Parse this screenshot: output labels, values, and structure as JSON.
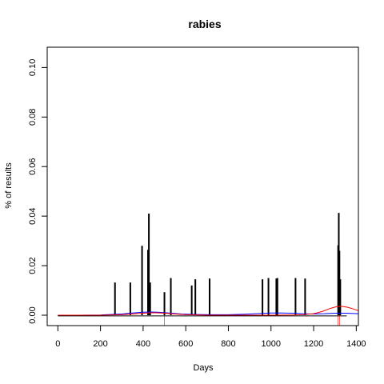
{
  "chart_data": {
    "type": "line",
    "title": "rabies",
    "xlabel": "Days",
    "ylabel": "% of results",
    "xlim": [
      -50,
      1410
    ],
    "ylim": [
      -0.0042,
      0.1082
    ],
    "xticks": [
      0,
      200,
      400,
      600,
      800,
      1000,
      1200,
      1400
    ],
    "yticks": [
      0.0,
      0.02,
      0.04,
      0.06,
      0.08,
      0.1
    ],
    "xtick_labels": [
      "0",
      "200",
      "400",
      "600",
      "800",
      "1000",
      "1200",
      "1400"
    ],
    "ytick_labels": [
      "0.00",
      "0.02",
      "0.04",
      "0.06",
      "0.08",
      "0.10"
    ],
    "grid": false,
    "spikes": {
      "color": "#000000",
      "points": [
        {
          "x": 268,
          "y": 0.0132
        },
        {
          "x": 340,
          "y": 0.0132
        },
        {
          "x": 395,
          "y": 0.028
        },
        {
          "x": 423,
          "y": 0.0264
        },
        {
          "x": 427,
          "y": 0.041
        },
        {
          "x": 433,
          "y": 0.0132
        },
        {
          "x": 500,
          "y": 0.0093
        },
        {
          "x": 530,
          "y": 0.015
        },
        {
          "x": 628,
          "y": 0.012
        },
        {
          "x": 645,
          "y": 0.0145
        },
        {
          "x": 712,
          "y": 0.0148
        },
        {
          "x": 960,
          "y": 0.0145
        },
        {
          "x": 988,
          "y": 0.015
        },
        {
          "x": 1025,
          "y": 0.0148
        },
        {
          "x": 1030,
          "y": 0.015
        },
        {
          "x": 1115,
          "y": 0.015
        },
        {
          "x": 1160,
          "y": 0.0148
        },
        {
          "x": 1315,
          "y": 0.0282
        },
        {
          "x": 1318,
          "y": 0.0413
        },
        {
          "x": 1321,
          "y": 0.026
        },
        {
          "x": 1325,
          "y": 0.0145
        }
      ]
    },
    "series": [
      {
        "color": "#0000ff",
        "x": [
          0,
          100,
          200,
          300,
          350,
          400,
          430,
          470,
          520,
          580,
          650,
          720,
          800,
          880,
          950,
          1000,
          1050,
          1100,
          1150,
          1200,
          1250,
          1300,
          1350,
          1410
        ],
        "y": [
          0.0,
          0.0,
          0.0001,
          0.0005,
          0.0009,
          0.0012,
          0.0013,
          0.0012,
          0.0009,
          0.0005,
          0.0003,
          0.0002,
          0.0002,
          0.0004,
          0.0007,
          0.0009,
          0.0009,
          0.0008,
          0.0006,
          0.0005,
          0.0006,
          0.0008,
          0.0008,
          0.0006
        ]
      },
      {
        "color": "#ff0000",
        "x": [
          0,
          100,
          200,
          300,
          350,
          400,
          450,
          500,
          550,
          600,
          700,
          800,
          900,
          1000,
          1100,
          1150,
          1200,
          1240,
          1280,
          1310,
          1330,
          1360,
          1390,
          1410
        ],
        "y": [
          0.0,
          0.0,
          0.0,
          0.0002,
          0.0005,
          0.0008,
          0.001,
          0.0008,
          0.0005,
          0.0002,
          0.0,
          0.0,
          0.0,
          0.0,
          0.0001,
          0.0002,
          0.0006,
          0.0015,
          0.0028,
          0.0035,
          0.0036,
          0.0032,
          0.0024,
          0.0018
        ]
      },
      {
        "color": "#000000",
        "x": [
          0,
          1355
        ],
        "y": [
          -0.0003,
          -0.0003
        ]
      }
    ],
    "reference_marks": {
      "color": "#ff0000",
      "x": [
        500,
        1315,
        1322
      ]
    }
  }
}
